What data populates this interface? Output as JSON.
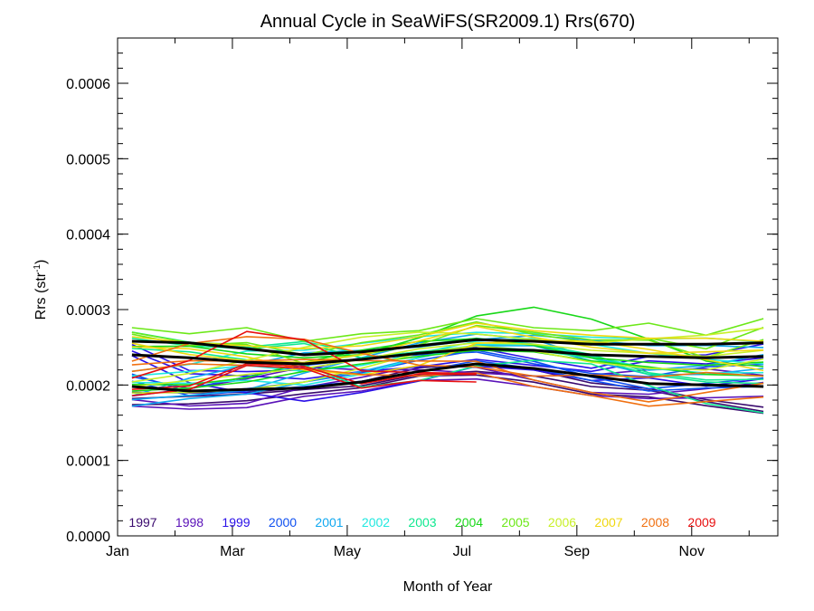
{
  "chart_data": {
    "type": "line",
    "title": "Annual Cycle in SeaWiFS(SR2009.1) Rrs(670)",
    "xlabel": "Month of Year",
    "ylabel": "Rrs (str-1)",
    "ylabel_base": "Rrs (str",
    "ylabel_sup": "-1",
    "ylabel_close": ")",
    "xlim": [
      1,
      12.5
    ],
    "ylim": [
      0,
      0.00066
    ],
    "x_ticks": [
      1,
      3,
      5,
      7,
      9,
      11
    ],
    "x_tick_labels": [
      "Jan",
      "Mar",
      "May",
      "Jul",
      "Sep",
      "Nov"
    ],
    "y_ticks": [
      0,
      0.0001,
      0.0002,
      0.0003,
      0.0004,
      0.0005,
      0.0006
    ],
    "y_tick_labels": [
      "0.0000",
      "0.0001",
      "0.0002",
      "0.0003",
      "0.0004",
      "0.0005",
      "0.0006"
    ],
    "x": [
      1.25,
      2.25,
      3.25,
      4.25,
      5.25,
      6.25,
      7.25,
      8.25,
      9.25,
      10.25,
      11.25,
      12.25
    ],
    "legend_position": "bottom-inside",
    "series": [
      {
        "name": "1997",
        "color": "#3a0a6e",
        "values": [
          0.000182,
          0.000185,
          0.000188,
          0.000194,
          0.000199,
          0.000214,
          0.000218,
          0.000212,
          0.000198,
          0.000193,
          0.000178,
          0.000165
        ],
        "offsets": [
          -1e-05,
          1e-05
        ]
      },
      {
        "name": "1998",
        "color": "#5a12b8",
        "values": [
          0.000172,
          0.000168,
          0.00017,
          0.000185,
          0.000192,
          0.000206,
          0.000208,
          0.000198,
          0.000186,
          0.000182,
          0.000183,
          0.000185
        ],
        "offsets": [
          2e-05,
          4e-05
        ]
      },
      {
        "name": "1999",
        "color": "#2a10e8",
        "values": [
          0.000245,
          0.000215,
          0.000212,
          0.000208,
          0.000218,
          0.000224,
          0.000234,
          0.000226,
          0.000218,
          0.000232,
          0.000228,
          0.000236
        ],
        "offsets": [
          -3e-05,
          2e-05
        ]
      },
      {
        "name": "2000",
        "color": "#1050f0",
        "values": [
          0.000205,
          0.000186,
          0.000192,
          0.000198,
          0.000205,
          0.000218,
          0.000232,
          0.000222,
          0.000206,
          0.000192,
          0.000196,
          0.000198
        ],
        "offsets": [
          1.5e-05,
          3e-05
        ]
      },
      {
        "name": "2001",
        "color": "#10a8f0",
        "values": [
          0.000172,
          0.000182,
          0.000188,
          0.000204,
          0.000218,
          0.000236,
          0.000252,
          0.000252,
          0.000232,
          0.000214,
          0.000214,
          0.000222
        ],
        "offsets": [
          4e-05,
          2e-05
        ]
      },
      {
        "name": "2002",
        "color": "#20e8e0",
        "values": [
          0.000212,
          0.000218,
          0.000226,
          0.000218,
          0.000226,
          0.000242,
          0.000258,
          0.000262,
          0.000254,
          0.000242,
          0.000234,
          0.000228
        ],
        "offsets": [
          -2e-05,
          3e-05
        ]
      },
      {
        "name": "2003",
        "color": "#10e890",
        "values": [
          0.000262,
          0.000252,
          0.000248,
          0.000255,
          0.000236,
          0.000244,
          0.000252,
          0.000246,
          0.000236,
          0.000214,
          0.000204,
          0.000202
        ],
        "offsets": [
          -4e-05,
          1e-05
        ]
      },
      {
        "name": "2004",
        "color": "#18d818",
        "values": [
          0.000192,
          0.000196,
          0.000204,
          0.000218,
          0.000228,
          0.000238,
          0.000246,
          0.000244,
          0.000232,
          0.000224,
          0.000214,
          0.000212
        ],
        "offsets": [
          6e-05,
          2e-05
        ]
      },
      {
        "name": "2005",
        "color": "#6ce818",
        "values": [
          0.000276,
          0.000268,
          0.000276,
          0.000258,
          0.000268,
          0.000272,
          0.000288,
          0.000276,
          0.000272,
          0.000282,
          0.000266,
          0.000288
        ],
        "offsets": [
          -3e-05,
          -2e-05
        ]
      },
      {
        "name": "2006",
        "color": "#c8f028",
        "values": [
          0.000198,
          0.000206,
          0.000214,
          0.000222,
          0.000234,
          0.000248,
          0.000256,
          0.000254,
          0.000246,
          0.000242,
          0.000238,
          0.000246
        ],
        "offsets": [
          3e-05,
          -2e-05
        ]
      },
      {
        "name": "2007",
        "color": "#f0d810",
        "values": [
          0.000264,
          0.000256,
          0.000252,
          0.000248,
          0.000252,
          0.000264,
          0.000282,
          0.000272,
          0.000266,
          0.000262,
          0.000262,
          0.000258
        ],
        "offsets": [
          -2e-05,
          -4e-05
        ]
      },
      {
        "name": "2008",
        "color": "#f07010",
        "values": [
          0.000218,
          0.000228,
          0.000226,
          0.000222,
          0.000214,
          0.000212,
          0.000216,
          0.000198,
          0.000186,
          0.000172,
          0.000178,
          0.000184
        ],
        "offsets": [
          2e-05,
          4e-05
        ]
      },
      {
        "name": "2009",
        "color": "#e81010",
        "values": [
          0.000186,
          0.000194,
          0.000226,
          0.000222,
          0.000196,
          0.000206,
          0.000204,
          null,
          null,
          null,
          null,
          null
        ],
        "offsets": [
          4.5e-05,
          1e-05
        ]
      }
    ],
    "mean_lines": [
      {
        "color": "#000000",
        "values": [
          0.000258,
          0.000256,
          0.000248,
          0.00024,
          0.000244,
          0.000252,
          0.00026,
          0.000258,
          0.000254,
          0.000254,
          0.000254,
          0.000256
        ]
      },
      {
        "color": "#000000",
        "values": [
          0.00024,
          0.000236,
          0.00023,
          0.000228,
          0.000234,
          0.000242,
          0.000248,
          0.000246,
          0.00024,
          0.000238,
          0.000236,
          0.000238
        ]
      },
      {
        "color": "#000000",
        "values": [
          0.000198,
          0.000192,
          0.000194,
          0.000196,
          0.000204,
          0.000218,
          0.000228,
          0.000222,
          0.000212,
          0.000202,
          0.0002,
          0.000198
        ]
      }
    ]
  }
}
